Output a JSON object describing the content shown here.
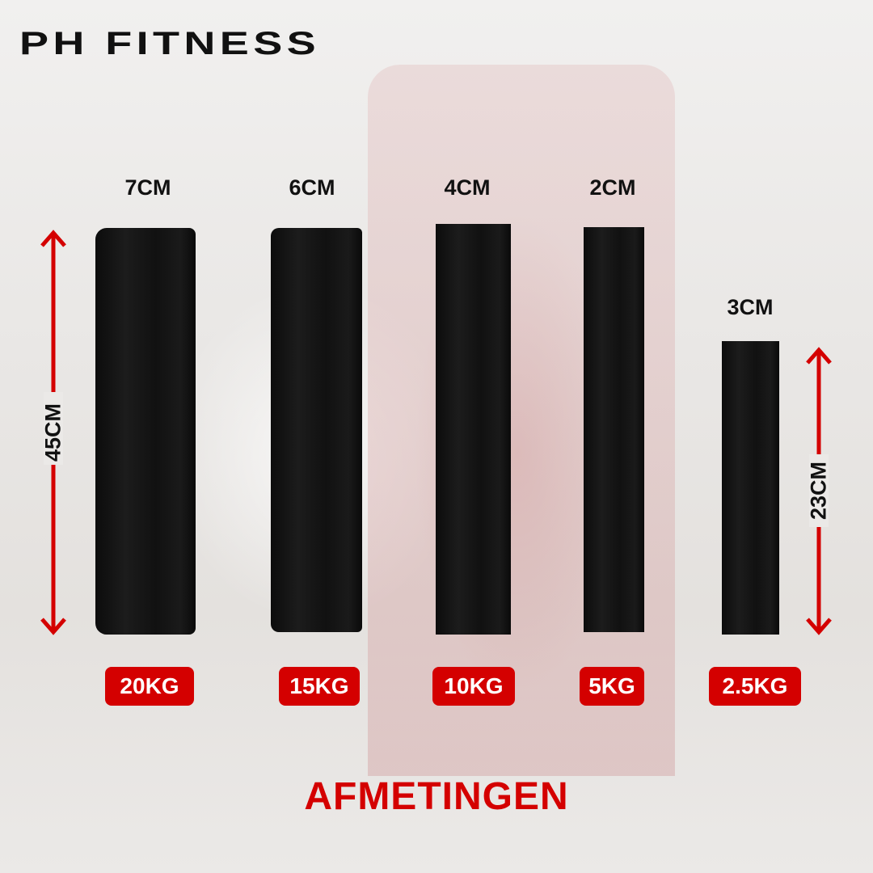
{
  "brand": "PH FITNESS",
  "title": "AFMETINGEN",
  "accent_color": "#d40000",
  "plates": [
    {
      "thickness": "7CM",
      "weight": "20KG"
    },
    {
      "thickness": "6CM",
      "weight": "15KG"
    },
    {
      "thickness": "4CM",
      "weight": "10KG"
    },
    {
      "thickness": "2CM",
      "weight": "5KG"
    },
    {
      "thickness": "3CM",
      "weight": "2.5KG"
    }
  ],
  "diameters": {
    "large": "45CM",
    "small": "23CM"
  }
}
